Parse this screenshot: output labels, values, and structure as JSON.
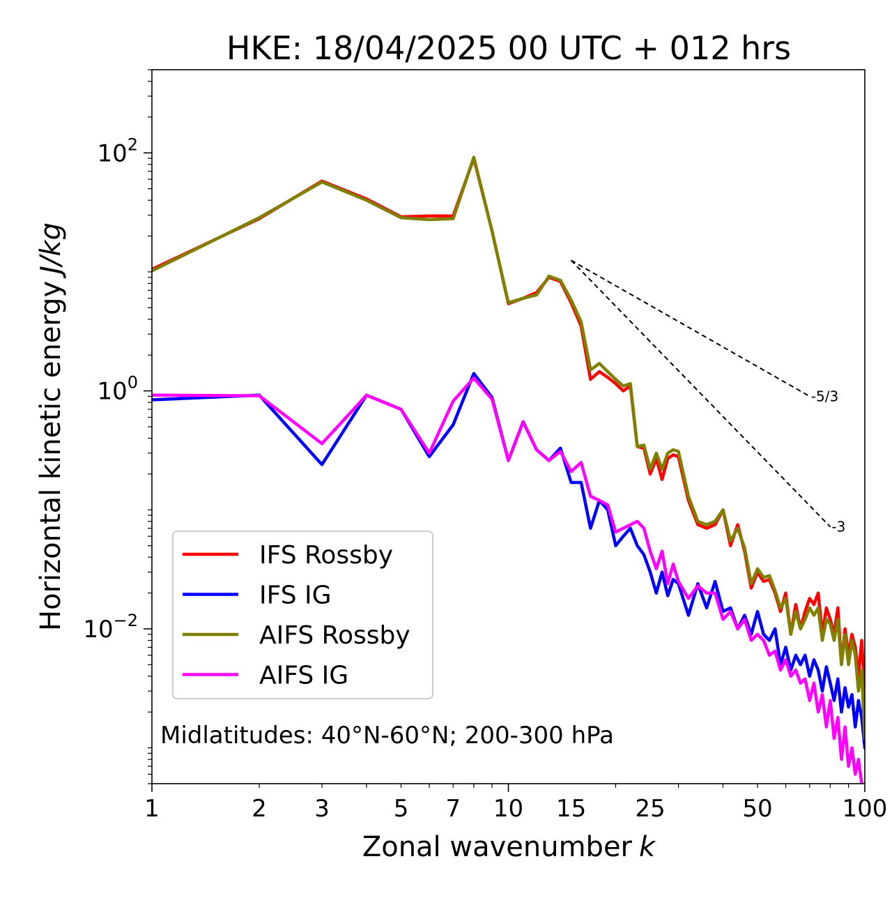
{
  "chart_data": {
    "type": "line",
    "title": "HKE: 18/04/2025 00 UTC + 012 hrs",
    "xlabel": "Zonal wavenumber",
    "xlabel_var": "k",
    "ylabel": "Horizontal kinetic energy",
    "ylabel_unit": "J/kg",
    "xscale": "log",
    "yscale": "log",
    "xlim": [
      1,
      100
    ],
    "ylim": [
      0.0005,
      500
    ],
    "x_ticks": [
      1,
      2,
      3,
      5,
      7,
      10,
      15,
      25,
      50,
      100
    ],
    "x_tick_labels": [
      "1",
      "2",
      "3",
      "5",
      "7",
      "10",
      "15",
      "25",
      "50",
      "100"
    ],
    "y_ticks": [
      0.01,
      1,
      100
    ],
    "y_tick_labels": [
      {
        "base": "10",
        "exp": "−2"
      },
      {
        "base": "10",
        "exp": "0"
      },
      {
        "base": "10",
        "exp": "2"
      }
    ],
    "grid": false,
    "legend_position": "lower-left",
    "annotation": "Midlatitudes: 40°N-60°N; 200-300 hPa",
    "series": [
      {
        "name": "IFS Rossby",
        "color": "#ff0000",
        "x": [
          1,
          2,
          3,
          4,
          5,
          6,
          7,
          8,
          9,
          10,
          11,
          12,
          13,
          14,
          15,
          16,
          17,
          18,
          19,
          20,
          21,
          22,
          23,
          24,
          25,
          26,
          27,
          28,
          29,
          30,
          32,
          34,
          36,
          38,
          40,
          42,
          44,
          46,
          48,
          50,
          52,
          54,
          56,
          58,
          60,
          62,
          64,
          66,
          68,
          70,
          72,
          74,
          76,
          78,
          80,
          82,
          84,
          86,
          88,
          90,
          92,
          94,
          96,
          98,
          100
        ],
        "y": [
          10.5,
          28,
          58,
          41,
          29,
          29.5,
          29.5,
          90,
          22,
          5.4,
          6.0,
          6.7,
          9,
          8.3,
          5.5,
          3.5,
          1.25,
          1.45,
          1.3,
          1.15,
          1.0,
          1.1,
          0.34,
          0.33,
          0.2,
          0.27,
          0.18,
          0.27,
          0.29,
          0.28,
          0.12,
          0.075,
          0.07,
          0.075,
          0.1,
          0.05,
          0.075,
          0.045,
          0.022,
          0.03,
          0.025,
          0.026,
          0.02,
          0.014,
          0.02,
          0.009,
          0.016,
          0.01,
          0.014,
          0.018,
          0.016,
          0.02,
          0.009,
          0.015,
          0.012,
          0.009,
          0.015,
          0.005,
          0.01,
          0.006,
          0.009,
          0.007,
          0.004,
          0.008,
          0.003
        ]
      },
      {
        "name": "IFS IG",
        "color": "#0000ff",
        "x": [
          1,
          2,
          3,
          4,
          5,
          6,
          7,
          8,
          9,
          10,
          11,
          12,
          13,
          14,
          15,
          16,
          17,
          18,
          19,
          20,
          21,
          22,
          23,
          24,
          25,
          26,
          27,
          28,
          29,
          30,
          32,
          34,
          36,
          38,
          40,
          42,
          44,
          46,
          48,
          50,
          52,
          54,
          56,
          58,
          60,
          62,
          64,
          66,
          68,
          70,
          72,
          74,
          76,
          78,
          80,
          82,
          84,
          86,
          88,
          90,
          92,
          94,
          96,
          98,
          100
        ],
        "y": [
          0.84,
          0.92,
          0.24,
          0.92,
          0.7,
          0.28,
          0.52,
          1.4,
          0.88,
          0.26,
          0.55,
          0.32,
          0.26,
          0.33,
          0.17,
          0.17,
          0.07,
          0.12,
          0.1,
          0.05,
          0.06,
          0.07,
          0.05,
          0.042,
          0.03,
          0.02,
          0.03,
          0.019,
          0.026,
          0.024,
          0.013,
          0.024,
          0.015,
          0.025,
          0.014,
          0.015,
          0.01,
          0.013,
          0.009,
          0.014,
          0.009,
          0.008,
          0.01,
          0.005,
          0.007,
          0.0045,
          0.006,
          0.005,
          0.006,
          0.004,
          0.0055,
          0.0045,
          0.003,
          0.0048,
          0.0035,
          0.0025,
          0.0038,
          0.002,
          0.0032,
          0.0022,
          0.0028,
          0.0015,
          0.0025,
          0.0018,
          0.001
        ]
      },
      {
        "name": "AIFS Rossby",
        "color": "#808000",
        "x": [
          1,
          2,
          3,
          4,
          5,
          6,
          7,
          8,
          9,
          10,
          11,
          12,
          13,
          14,
          15,
          16,
          17,
          18,
          19,
          20,
          21,
          22,
          23,
          24,
          25,
          26,
          27,
          28,
          29,
          30,
          32,
          34,
          36,
          38,
          40,
          42,
          44,
          46,
          48,
          50,
          52,
          54,
          56,
          58,
          60,
          62,
          64,
          66,
          68,
          70,
          72,
          74,
          76,
          78,
          80,
          82,
          84,
          86,
          88,
          90,
          92,
          94,
          96,
          98,
          100
        ],
        "y": [
          10.2,
          28.5,
          57,
          40,
          28.5,
          27.5,
          28,
          92,
          22,
          5.5,
          6.0,
          6.4,
          9.2,
          8.5,
          5.8,
          3.8,
          1.5,
          1.7,
          1.45,
          1.25,
          1.1,
          1.15,
          0.34,
          0.35,
          0.22,
          0.3,
          0.22,
          0.3,
          0.32,
          0.31,
          0.13,
          0.08,
          0.075,
          0.08,
          0.1,
          0.055,
          0.07,
          0.048,
          0.024,
          0.032,
          0.027,
          0.028,
          0.021,
          0.015,
          0.018,
          0.009,
          0.014,
          0.01,
          0.012,
          0.015,
          0.013,
          0.015,
          0.008,
          0.012,
          0.011,
          0.008,
          0.012,
          0.005,
          0.009,
          0.005,
          0.008,
          0.006,
          0.003,
          0.0045,
          0.0012
        ]
      },
      {
        "name": "AIFS IG",
        "color": "#ff00ff",
        "x": [
          1,
          2,
          3,
          4,
          5,
          6,
          7,
          8,
          9,
          10,
          11,
          12,
          13,
          14,
          15,
          16,
          17,
          18,
          19,
          20,
          21,
          22,
          23,
          24,
          25,
          26,
          27,
          28,
          29,
          30,
          32,
          34,
          36,
          38,
          40,
          42,
          44,
          46,
          48,
          50,
          52,
          54,
          56,
          58,
          60,
          62,
          64,
          66,
          68,
          70,
          72,
          74,
          76,
          78,
          80,
          82,
          84,
          86,
          88,
          90,
          92,
          94,
          96,
          98,
          100
        ],
        "y": [
          0.92,
          0.91,
          0.36,
          0.92,
          0.7,
          0.3,
          0.82,
          1.28,
          0.85,
          0.26,
          0.55,
          0.32,
          0.26,
          0.31,
          0.21,
          0.25,
          0.13,
          0.12,
          0.11,
          0.065,
          0.07,
          0.075,
          0.08,
          0.07,
          0.045,
          0.032,
          0.045,
          0.024,
          0.035,
          0.025,
          0.018,
          0.023,
          0.02,
          0.02,
          0.012,
          0.014,
          0.01,
          0.012,
          0.008,
          0.009,
          0.008,
          0.006,
          0.0065,
          0.0045,
          0.0055,
          0.004,
          0.0045,
          0.0035,
          0.0038,
          0.0025,
          0.0035,
          0.002,
          0.0028,
          0.0015,
          0.0025,
          0.0012,
          0.0018,
          0.0008,
          0.0015,
          0.0007,
          0.001,
          0.0006,
          0.0008,
          0.0005,
          0.0004
        ]
      }
    ],
    "slope_lines": [
      {
        "label": "-5/3",
        "x": [
          15,
          70
        ],
        "y": [
          12.5,
          0.9
        ]
      },
      {
        "label": "-3",
        "x": [
          15,
          80
        ],
        "y": [
          12.5,
          0.072
        ]
      }
    ]
  }
}
